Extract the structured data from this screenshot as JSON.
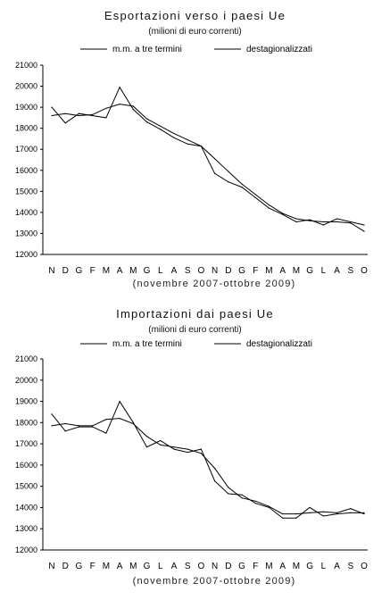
{
  "chart_data": [
    {
      "type": "line",
      "title": "Esportazioni verso i paesi Ue",
      "subtitle": "(milioni di euro correnti)",
      "xlabel": "(novembre 2007-ottobre 2009)",
      "ylabel": "",
      "ylim": [
        12000,
        21000
      ],
      "yticks": [
        12000,
        13000,
        14000,
        15000,
        16000,
        17000,
        18000,
        19000,
        20000,
        21000
      ],
      "grid": false,
      "legend": "top",
      "categories": [
        "N",
        "D",
        "G",
        "F",
        "M",
        "A",
        "M",
        "G",
        "L",
        "A",
        "S",
        "O",
        "N",
        "D",
        "G",
        "F",
        "M",
        "A",
        "M",
        "G",
        "L",
        "A",
        "S",
        "O"
      ],
      "series": [
        {
          "name": "m.m. a tre termini",
          "color": "#000000",
          "values": [
            18600,
            18700,
            18600,
            18650,
            18950,
            19150,
            19050,
            18450,
            18100,
            17750,
            17450,
            17150,
            16550,
            15950,
            15350,
            14850,
            14350,
            13950,
            13700,
            13600,
            13550,
            13550,
            13500,
            13100
          ]
        },
        {
          "name": "destagionalizzati",
          "color": "#000000",
          "values": [
            19000,
            18250,
            18700,
            18600,
            18500,
            19950,
            18900,
            18300,
            17950,
            17550,
            17250,
            17150,
            15850,
            15450,
            15200,
            14700,
            14200,
            13900,
            13550,
            13650,
            13400,
            13700,
            13550,
            13400
          ]
        }
      ]
    },
    {
      "type": "line",
      "title": "Importazioni dai paesi Ue",
      "subtitle": "(milioni di euro correnti)",
      "xlabel": "(novembre 2007-ottobre 2009)",
      "ylabel": "",
      "ylim": [
        12000,
        21000
      ],
      "yticks": [
        12000,
        13000,
        14000,
        15000,
        16000,
        17000,
        18000,
        19000,
        20000,
        21000
      ],
      "grid": false,
      "legend": "top",
      "categories": [
        "N",
        "D",
        "G",
        "F",
        "M",
        "A",
        "M",
        "G",
        "L",
        "A",
        "S",
        "O",
        "N",
        "D",
        "G",
        "F",
        "M",
        "A",
        "M",
        "G",
        "L",
        "A",
        "S",
        "O"
      ],
      "series": [
        {
          "name": "m.m. a tre termini",
          "color": "#000000",
          "values": [
            17850,
            17950,
            17850,
            17850,
            18150,
            18200,
            17950,
            17350,
            16950,
            16850,
            16750,
            16550,
            15850,
            14950,
            14450,
            14300,
            14050,
            13700,
            13700,
            13750,
            13800,
            13750,
            13950,
            13700
          ]
        },
        {
          "name": "destagionalizzati",
          "color": "#000000",
          "values": [
            18400,
            17600,
            17800,
            17800,
            17500,
            19000,
            18000,
            16850,
            17150,
            16750,
            16600,
            16750,
            15250,
            14650,
            14600,
            14200,
            14000,
            13500,
            13500,
            14000,
            13600,
            13700,
            13750,
            13750
          ]
        }
      ]
    }
  ]
}
